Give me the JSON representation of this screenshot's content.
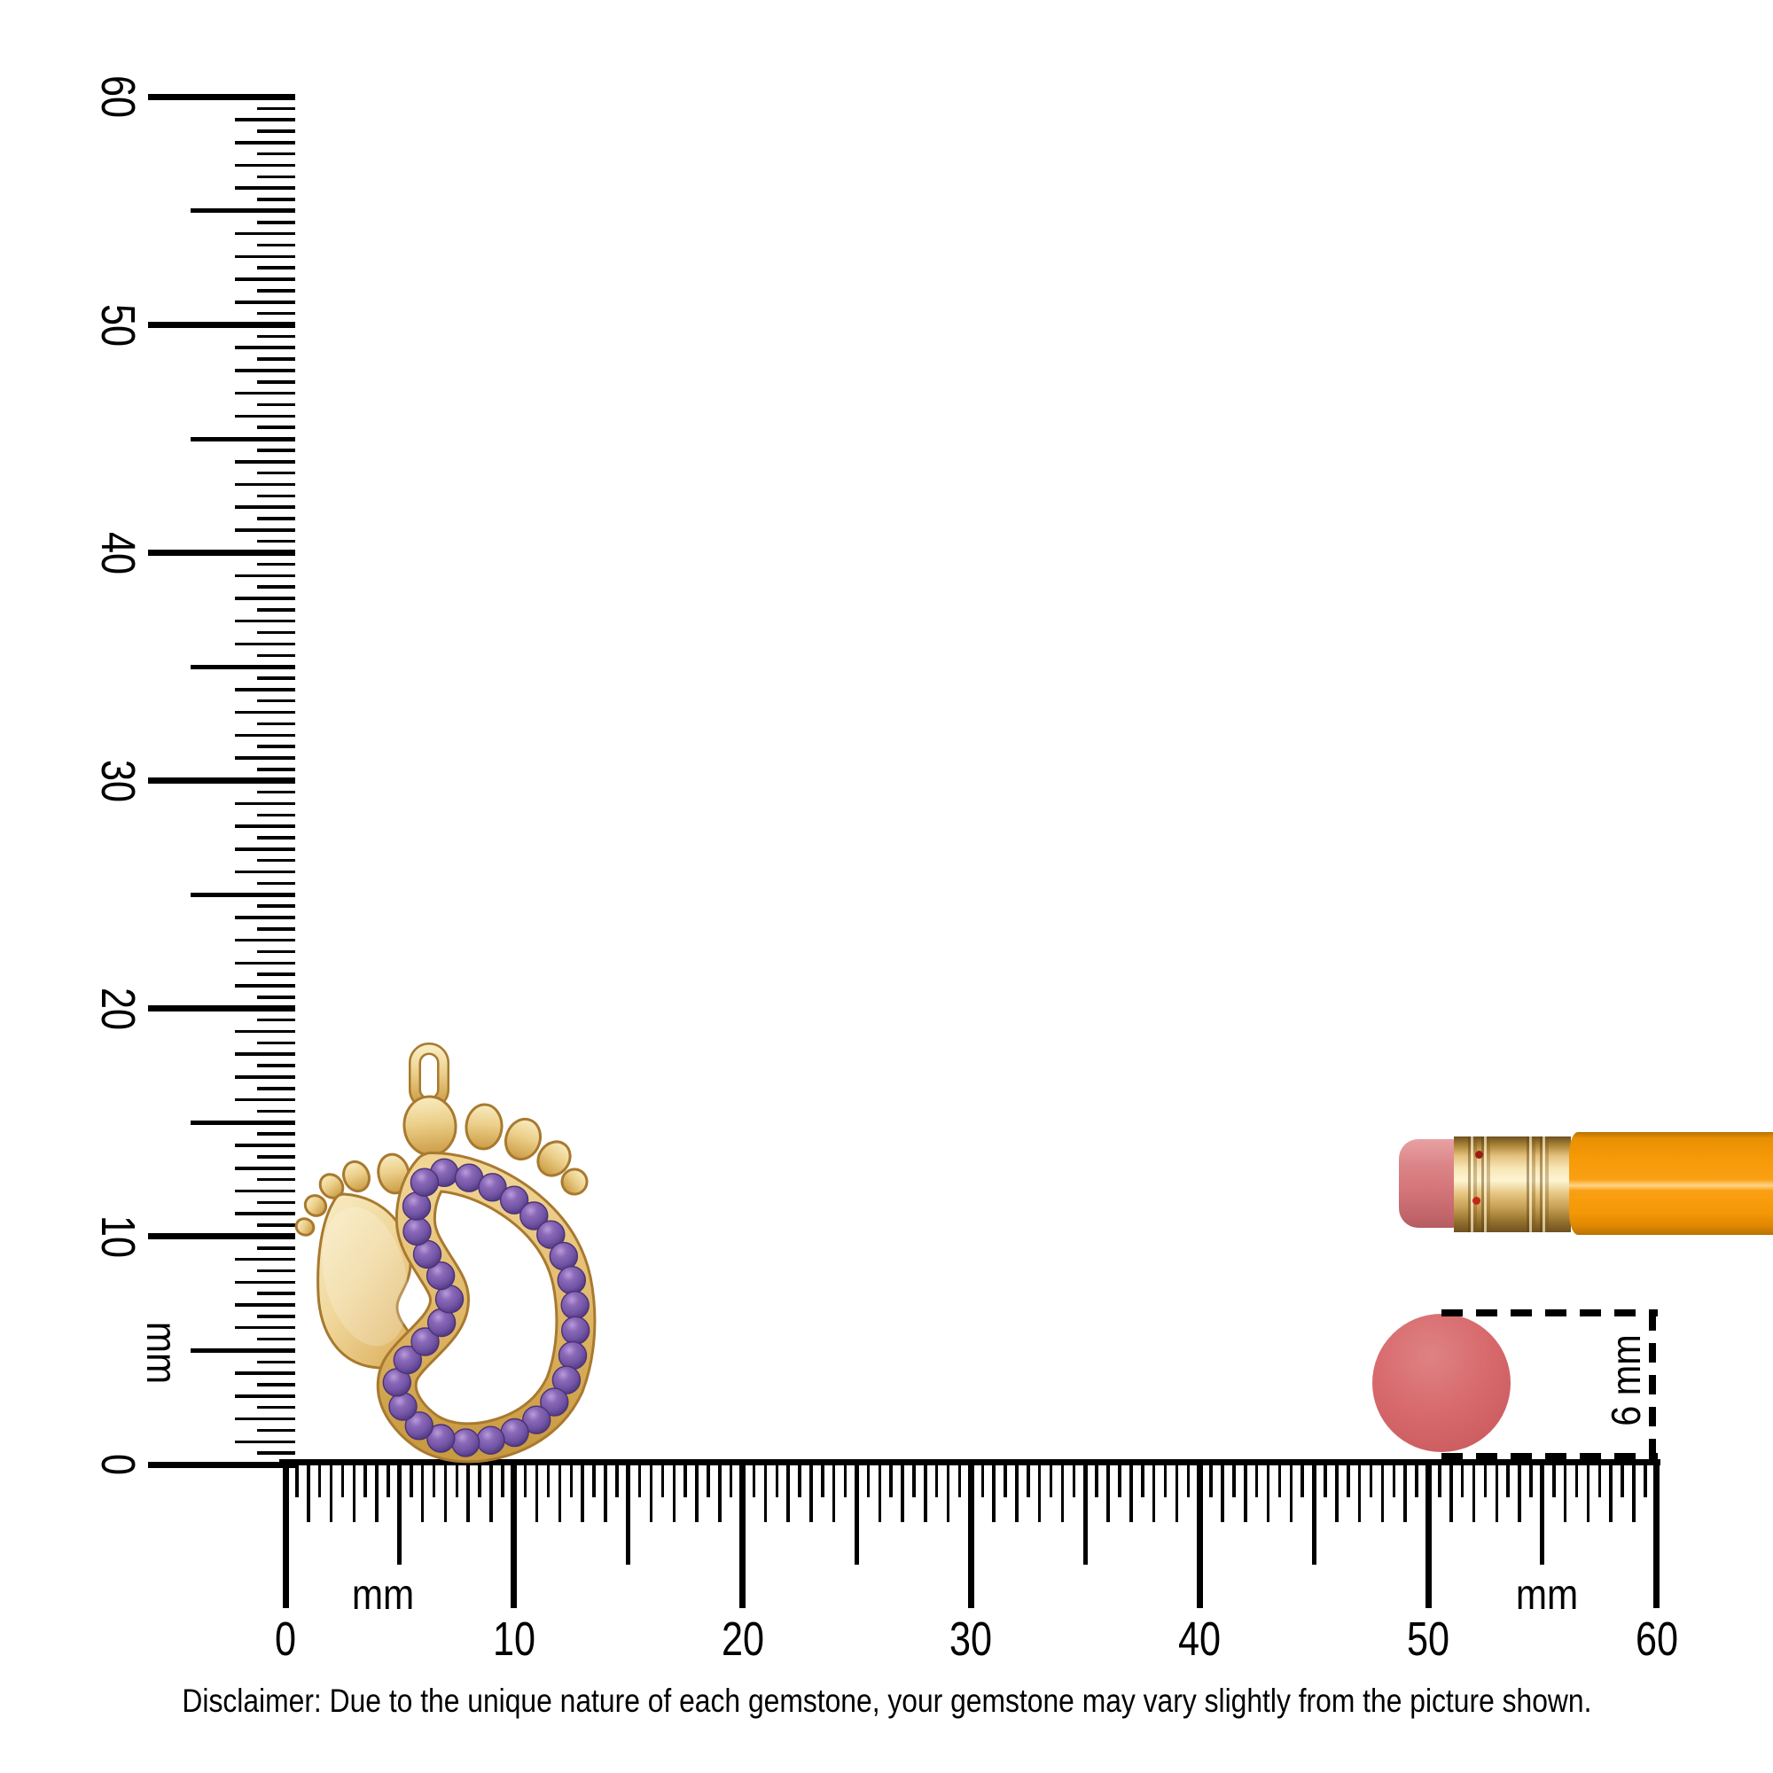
{
  "rulers": {
    "vertical": {
      "unit": "mm",
      "labels": [
        "0",
        "10",
        "20",
        "30",
        "40",
        "50",
        "60"
      ]
    },
    "horizontal": {
      "unit_left": "mm",
      "unit_right": "mm",
      "labels": [
        "0",
        "10",
        "20",
        "30",
        "40",
        "50",
        "60"
      ]
    }
  },
  "annotation": {
    "dimension_label": "6 mm",
    "dot_diameter_mm": 6
  },
  "footer": {
    "disclaimer": "Disclaimer: Due to the unique nature of each gemstone, your gemstone may vary slightly from the picture shown."
  },
  "objects": {
    "pendant": {
      "name": "baby-feet-gemstone-pendant",
      "gem_count": 30,
      "gem_color": "#8a68b8",
      "gem_color_dark": "#4a3276",
      "gem_color_light": "#b99cda",
      "gold_color": "#e9c77c",
      "gold_edge_color": "#a8792f"
    },
    "pencil": {
      "name": "pencil-tip",
      "body_color": "#f89c08",
      "ferrule_color": "#e8cf9a",
      "eraser_color": "#d5767a"
    },
    "eraser_dot": {
      "name": "eraser-scale-dot",
      "color": "#d7696c"
    }
  }
}
